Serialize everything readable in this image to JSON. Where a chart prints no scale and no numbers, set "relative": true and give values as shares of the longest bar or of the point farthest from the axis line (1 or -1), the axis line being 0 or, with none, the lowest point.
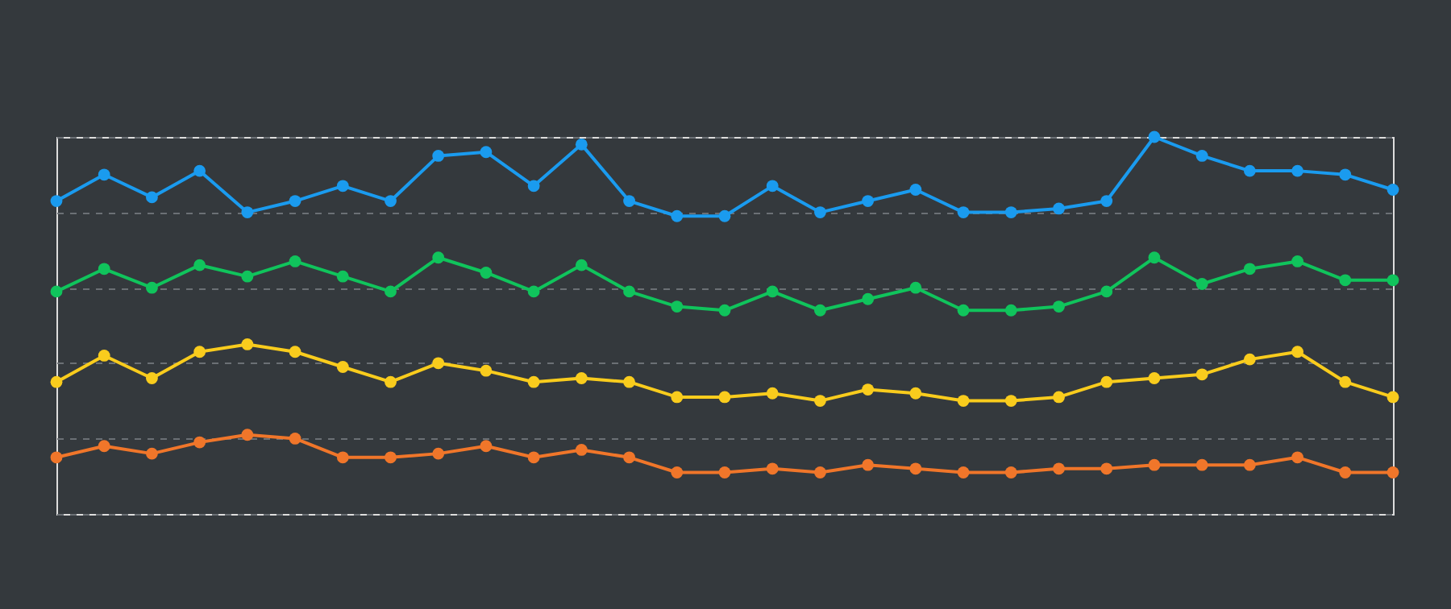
{
  "chart_data": {
    "type": "line",
    "relative": true,
    "grid": "y",
    "marker": "circle",
    "line_style": "solid",
    "legend": false,
    "categories": [
      null,
      null,
      null,
      null,
      null,
      null,
      null,
      null,
      null,
      null,
      null,
      null,
      null,
      null,
      null,
      null,
      null,
      null,
      null,
      null,
      null,
      null,
      null,
      null,
      null,
      null,
      null,
      null,
      null
    ],
    "series": [
      {
        "color": "#1a9bef",
        "values": [
          0.83,
          0.9,
          0.84,
          0.91,
          0.8,
          0.83,
          0.87,
          0.83,
          0.95,
          0.96,
          0.87,
          0.98,
          0.83,
          0.79,
          0.79,
          0.87,
          0.8,
          0.83,
          0.86,
          0.8,
          0.8,
          0.81,
          0.83,
          1,
          0.95,
          0.91,
          0.91,
          0.9,
          0.86
        ]
      },
      {
        "color": "#10c45c",
        "values": [
          0.59,
          0.65,
          0.6,
          0.66,
          0.63,
          0.67,
          0.63,
          0.59,
          0.68,
          0.64,
          0.59,
          0.66,
          0.59,
          0.55,
          0.54,
          0.59,
          0.54,
          0.57,
          0.6,
          0.54,
          0.54,
          0.55,
          0.59,
          0.68,
          0.61,
          0.65,
          0.67,
          0.62,
          0.62
        ]
      },
      {
        "color": "#f9cc1d",
        "values": [
          0.35,
          0.42,
          0.36,
          0.43,
          0.45,
          0.43,
          0.39,
          0.35,
          0.4,
          0.38,
          0.35,
          0.36,
          0.35,
          0.31,
          0.31,
          0.32,
          0.3,
          0.33,
          0.32,
          0.3,
          0.3,
          0.31,
          0.35,
          0.36,
          0.37,
          0.41,
          0.43,
          0.35,
          0.31
        ]
      },
      {
        "color": "#f0762a",
        "values": [
          0.15,
          0.18,
          0.16,
          0.19,
          0.21,
          0.2,
          0.15,
          0.15,
          0.16,
          0.18,
          0.15,
          0.17,
          0.15,
          0.11,
          0.11,
          0.12,
          0.11,
          0.13,
          0.12,
          0.11,
          0.11,
          0.12,
          0.12,
          0.13,
          0.13,
          0.13,
          0.15,
          0.11,
          0.11
        ]
      }
    ]
  }
}
